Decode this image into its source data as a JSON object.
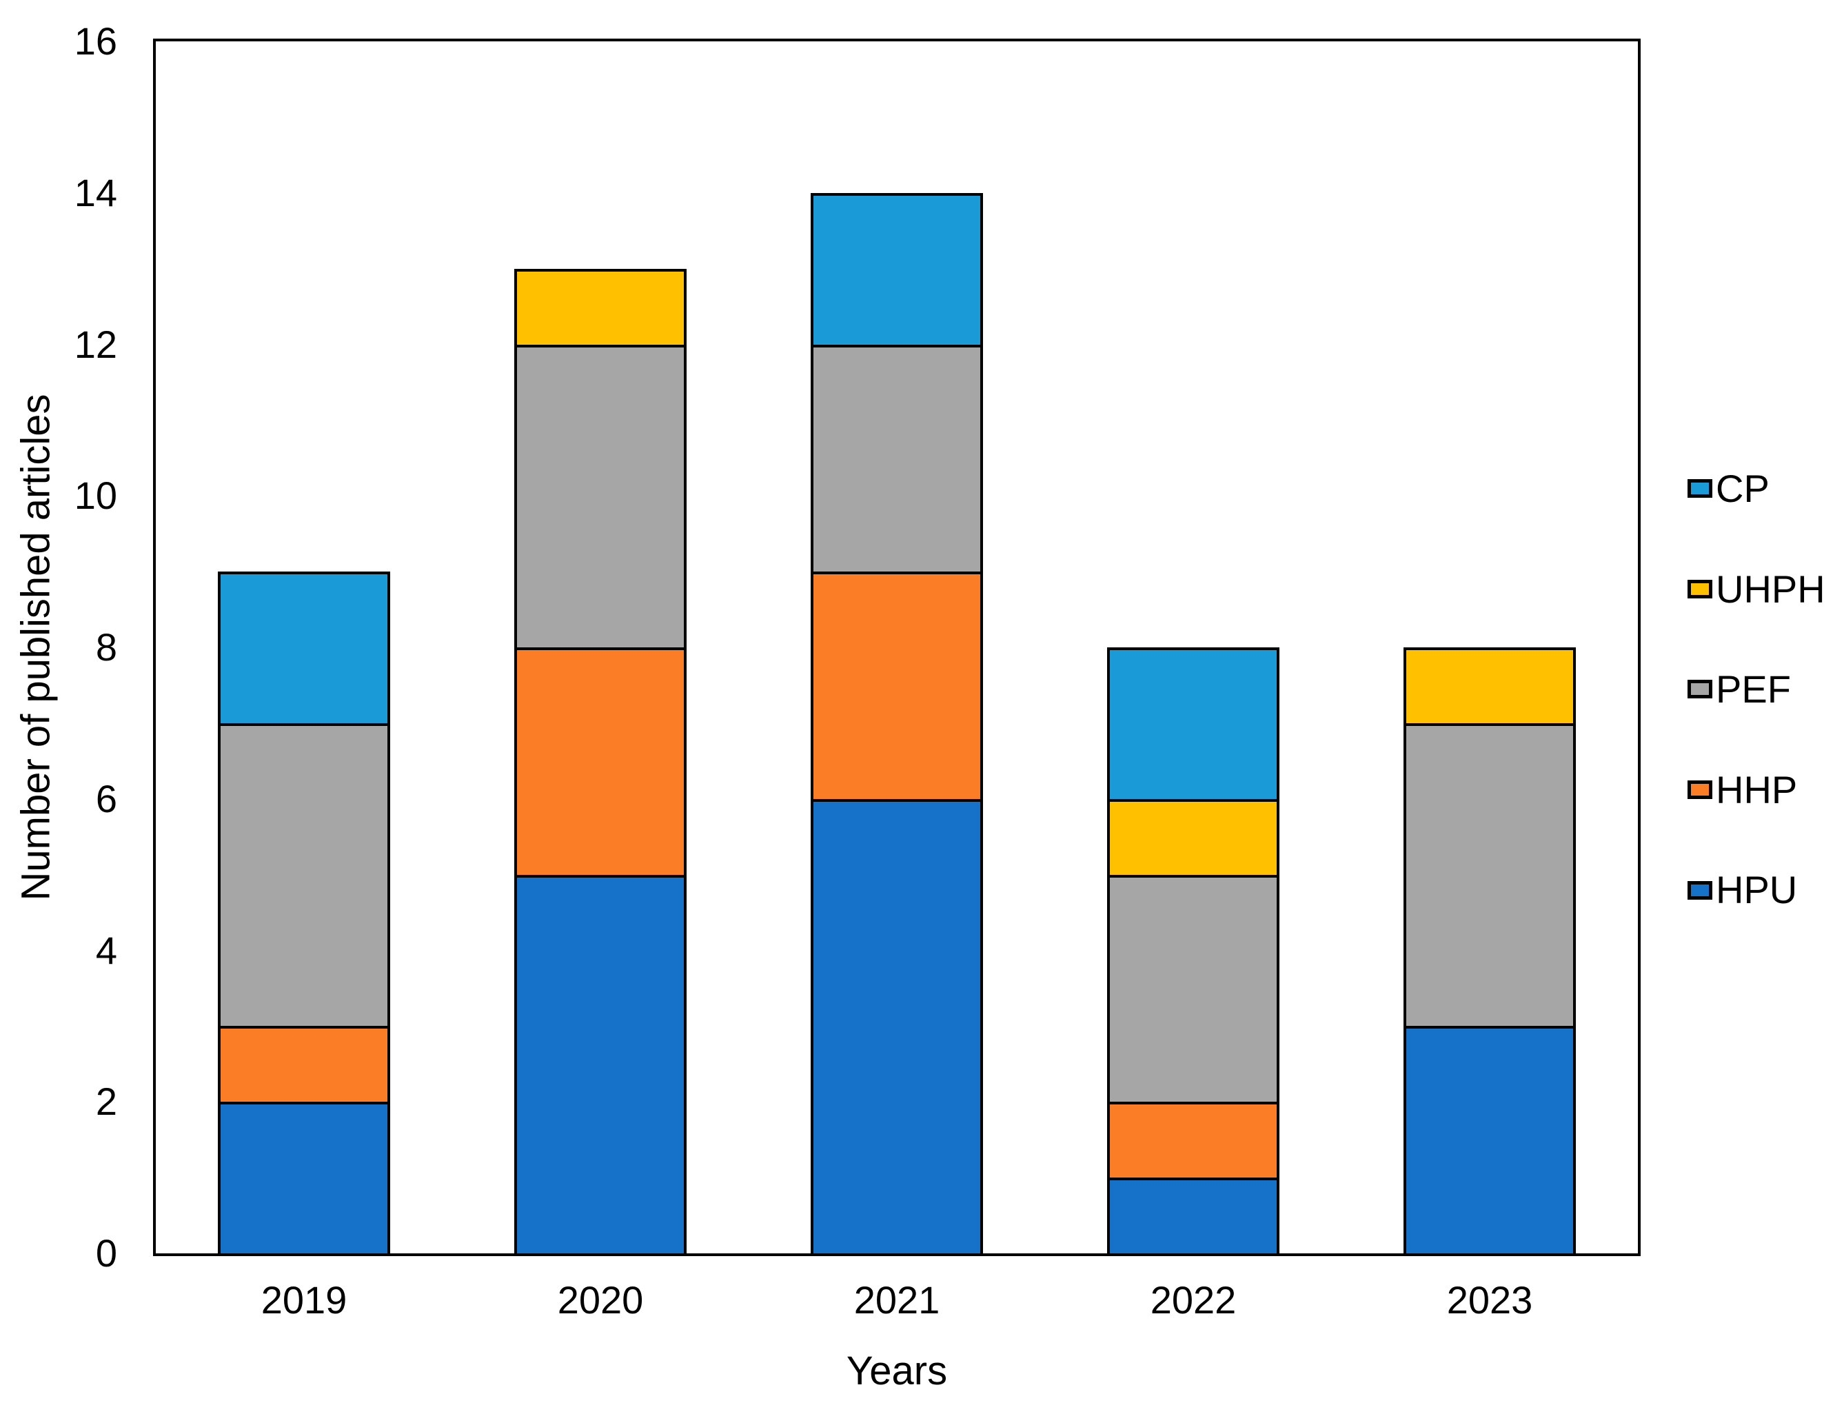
{
  "figure": {
    "x_axis_title": "Years",
    "y_axis_title": "Number of published articles"
  },
  "chart_data": {
    "type": "bar",
    "stacked": true,
    "orientation": "vertical",
    "title": "",
    "xlabel": "Years",
    "ylabel": "Number of published articles",
    "categories": [
      "2019",
      "2020",
      "2021",
      "2022",
      "2023"
    ],
    "series": [
      {
        "name": "HPU",
        "color": "#1572C8",
        "values": [
          2,
          5,
          6,
          1,
          3
        ]
      },
      {
        "name": "HHP",
        "color": "#FB7D26",
        "values": [
          1,
          3,
          3,
          1,
          0
        ]
      },
      {
        "name": "PEF",
        "color": "#A6A6A6",
        "values": [
          4,
          4,
          3,
          3,
          4
        ]
      },
      {
        "name": "UHPH",
        "color": "#FFC000",
        "values": [
          0,
          1,
          0,
          1,
          1
        ]
      },
      {
        "name": "CP",
        "color": "#1A9BD7",
        "values": [
          2,
          0,
          2,
          2,
          0
        ]
      }
    ],
    "ylim": [
      0,
      16
    ],
    "yticks": [
      0,
      2,
      4,
      6,
      8,
      10,
      12,
      14,
      16
    ],
    "grid": false,
    "legend": {
      "position": "right",
      "order": [
        "CP",
        "UHPH",
        "PEF",
        "HHP",
        "HPU"
      ]
    }
  },
  "colors": {
    "background": "#FFFFFF",
    "axis_border": "#000000",
    "segment_border": "#000000",
    "text": "#000000"
  }
}
